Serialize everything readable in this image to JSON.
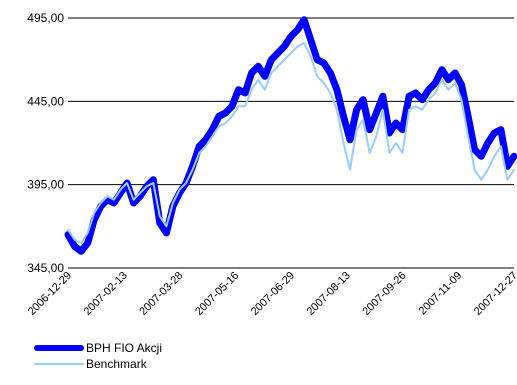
{
  "chart_data": {
    "type": "line",
    "ylim": [
      345,
      495
    ],
    "yticks": [
      "345,00",
      "395,00",
      "445,00",
      "495,00"
    ],
    "xticks": [
      "2006-12-29",
      "2007-02-13",
      "2007-03-28",
      "2007-05-16",
      "2007-06-29",
      "2007-08-13",
      "2007-09-26",
      "2007-11-09",
      "2007-12-27"
    ],
    "legend_position": "bottom-left",
    "grid": "horizontal",
    "series": [
      {
        "name": "BPH FIO Akcji",
        "color": "#0000ff",
        "values": [
          365,
          358,
          355,
          360,
          374,
          382,
          386,
          384,
          390,
          396,
          384,
          388,
          394,
          398,
          372,
          366,
          382,
          390,
          396,
          406,
          418,
          422,
          428,
          436,
          438,
          442,
          452,
          450,
          462,
          466,
          460,
          470,
          474,
          478,
          484,
          488,
          494,
          482,
          470,
          468,
          462,
          452,
          436,
          422,
          440,
          446,
          428,
          438,
          448,
          426,
          432,
          428,
          448,
          450,
          446,
          452,
          456,
          464,
          458,
          462,
          455,
          436,
          416,
          412,
          420,
          426,
          428,
          406,
          412
        ]
      },
      {
        "name": "Benchmark",
        "color": "#99ccff",
        "values": [
          368,
          362,
          360,
          366,
          378,
          384,
          388,
          386,
          392,
          396,
          386,
          390,
          394,
          396,
          376,
          370,
          384,
          392,
          396,
          404,
          414,
          418,
          424,
          430,
          432,
          436,
          442,
          442,
          452,
          458,
          452,
          462,
          466,
          470,
          474,
          478,
          480,
          472,
          460,
          456,
          450,
          440,
          420,
          404,
          428,
          434,
          414,
          424,
          440,
          414,
          420,
          414,
          440,
          442,
          440,
          446,
          450,
          458,
          452,
          456,
          446,
          424,
          404,
          398,
          404,
          412,
          418,
          398,
          404
        ]
      }
    ]
  }
}
